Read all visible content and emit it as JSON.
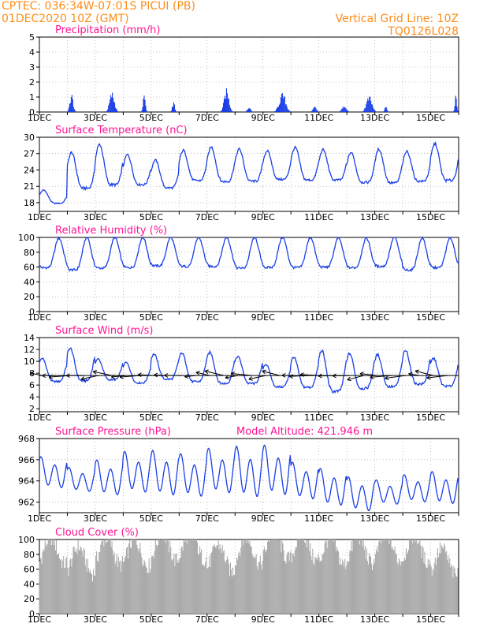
{
  "header": {
    "left_line1": "CPTEC:   036:34W-07:01S   PICUI (PB)",
    "left_line2": "01DEC2020 10Z (GMT)",
    "right_line1": "Vertical Grid Line: 10Z",
    "right_line2": "TQ0126L028"
  },
  "colors": {
    "header": "#ff8c1a",
    "title": "#ff1493",
    "series": "#1a3fe6",
    "cloud": "#aaaaaa",
    "grid": "#999999"
  },
  "x_tick_labels": [
    "1DEC",
    "3DEC",
    "5DEC",
    "7DEC",
    "9DEC",
    "11DEC",
    "13DEC",
    "15DEC"
  ],
  "chart_data": [
    {
      "type": "bar",
      "title": "Precipitation (mm/h)",
      "ylim": [
        0,
        5
      ],
      "yticks": [
        "0",
        "1",
        "2",
        "3",
        "4",
        "5"
      ],
      "x_range_days": [
        1,
        16
      ],
      "bursts": [
        {
          "day": 2.15,
          "peak": 1.3,
          "width": 0.08
        },
        {
          "day": 3.6,
          "peak": 1.4,
          "width": 0.12
        },
        {
          "day": 4.75,
          "peak": 1.4,
          "width": 0.06
        },
        {
          "day": 5.8,
          "peak": 0.7,
          "width": 0.06
        },
        {
          "day": 7.7,
          "peak": 1.6,
          "width": 0.12
        },
        {
          "day": 8.5,
          "peak": 0.4,
          "width": 0.08
        },
        {
          "day": 9.7,
          "peak": 1.3,
          "width": 0.16
        },
        {
          "day": 10.85,
          "peak": 0.5,
          "width": 0.08
        },
        {
          "day": 11.9,
          "peak": 0.4,
          "width": 0.12
        },
        {
          "day": 12.8,
          "peak": 1.1,
          "width": 0.14
        },
        {
          "day": 13.4,
          "peak": 0.4,
          "width": 0.06
        },
        {
          "day": 15.9,
          "peak": 1.2,
          "width": 0.05
        }
      ]
    },
    {
      "type": "line",
      "title": "Surface Temperature (nC)",
      "ylim": [
        16.4,
        30
      ],
      "yticks": [
        "18",
        "21",
        "24",
        "27",
        "30"
      ],
      "ytick_values": [
        18,
        21,
        24,
        27,
        30
      ],
      "x_range_days": [
        1,
        16
      ],
      "daily_max": [
        20.3,
        27.2,
        28.7,
        26.8,
        25.8,
        27.6,
        28.2,
        27.8,
        27.5,
        28.1,
        27.7,
        27.2,
        27.8,
        27.4,
        28.8,
        28.1
      ],
      "daily_min": [
        17.2,
        18.8,
        19.2,
        19.8,
        19.3,
        20.5,
        20.1,
        20.3,
        20.8,
        20.5,
        20.6,
        20.2,
        19.9,
        20.4,
        20.2,
        20.9
      ]
    },
    {
      "type": "line",
      "title": "Relative Humidity (%)",
      "ylim": [
        0,
        100
      ],
      "yticks": [
        "0",
        "20",
        "40",
        "60",
        "80",
        "100"
      ],
      "ytick_values": [
        0,
        20,
        40,
        60,
        80,
        100
      ],
      "x_range_days": [
        1,
        16
      ],
      "daily_max": [
        99,
        100,
        100,
        100,
        100,
        100,
        100,
        100,
        100,
        100,
        99,
        99,
        100,
        99,
        99
      ],
      "daily_min": [
        48,
        44,
        47,
        48,
        51,
        50,
        50,
        47,
        48,
        48,
        49,
        48,
        50,
        44,
        48
      ]
    },
    {
      "type": "line",
      "title": "Surface Wind (m/s)",
      "ylim": [
        1.5,
        14
      ],
      "yticks": [
        "2",
        "4",
        "6",
        "8",
        "10",
        "12",
        "14"
      ],
      "ytick_values": [
        2,
        4,
        6,
        8,
        10,
        12,
        14
      ],
      "x_range_days": [
        1,
        16
      ],
      "daily_max": [
        10.5,
        12.2,
        10.4,
        9.8,
        11.2,
        11.4,
        11.5,
        10.8,
        9.5,
        10.7,
        11.8,
        11.3,
        11.1,
        11.8,
        10.5,
        10.0
      ],
      "daily_min": [
        5.5,
        5.2,
        5.9,
        5.4,
        5.8,
        5.2,
        4.8,
        5.0,
        4.6,
        4.2,
        3.0,
        3.8,
        4.2,
        4.6,
        4.5,
        4.5
      ],
      "vector_baseline_ms": 7.6
    },
    {
      "type": "line",
      "title": "Surface Pressure (hPa)",
      "annotation": "Model Altitude: 421.946  m",
      "ylim": [
        961,
        968
      ],
      "yticks": [
        "962",
        "964",
        "966",
        "968"
      ],
      "ytick_values": [
        962,
        964,
        966,
        968
      ],
      "x_range_days": [
        1,
        16
      ],
      "daily_max": [
        966.3,
        965.3,
        966.0,
        966.8,
        966.9,
        966.6,
        967.1,
        967.3,
        967.4,
        965.8,
        965.2,
        964.4,
        964.1,
        964.6,
        964.9,
        964.0
      ],
      "daily_min": [
        963.1,
        962.8,
        962.4,
        962.6,
        962.3,
        962.2,
        962.5,
        962.1,
        962.3,
        962.0,
        961.4,
        960.9,
        961.6,
        961.8,
        961.6,
        961.5
      ]
    },
    {
      "type": "bar",
      "title": "Cloud Cover (%)",
      "ylim": [
        0,
        100
      ],
      "yticks": [
        "0",
        "20",
        "40",
        "60",
        "80",
        "100"
      ],
      "ytick_values": [
        0,
        20,
        40,
        60,
        80,
        100
      ],
      "x_range_days": [
        1,
        16
      ],
      "daily_mean": [
        85,
        72,
        84,
        82,
        90,
        92,
        75,
        85,
        92,
        90,
        84,
        86,
        90,
        88,
        70,
        84
      ]
    }
  ]
}
